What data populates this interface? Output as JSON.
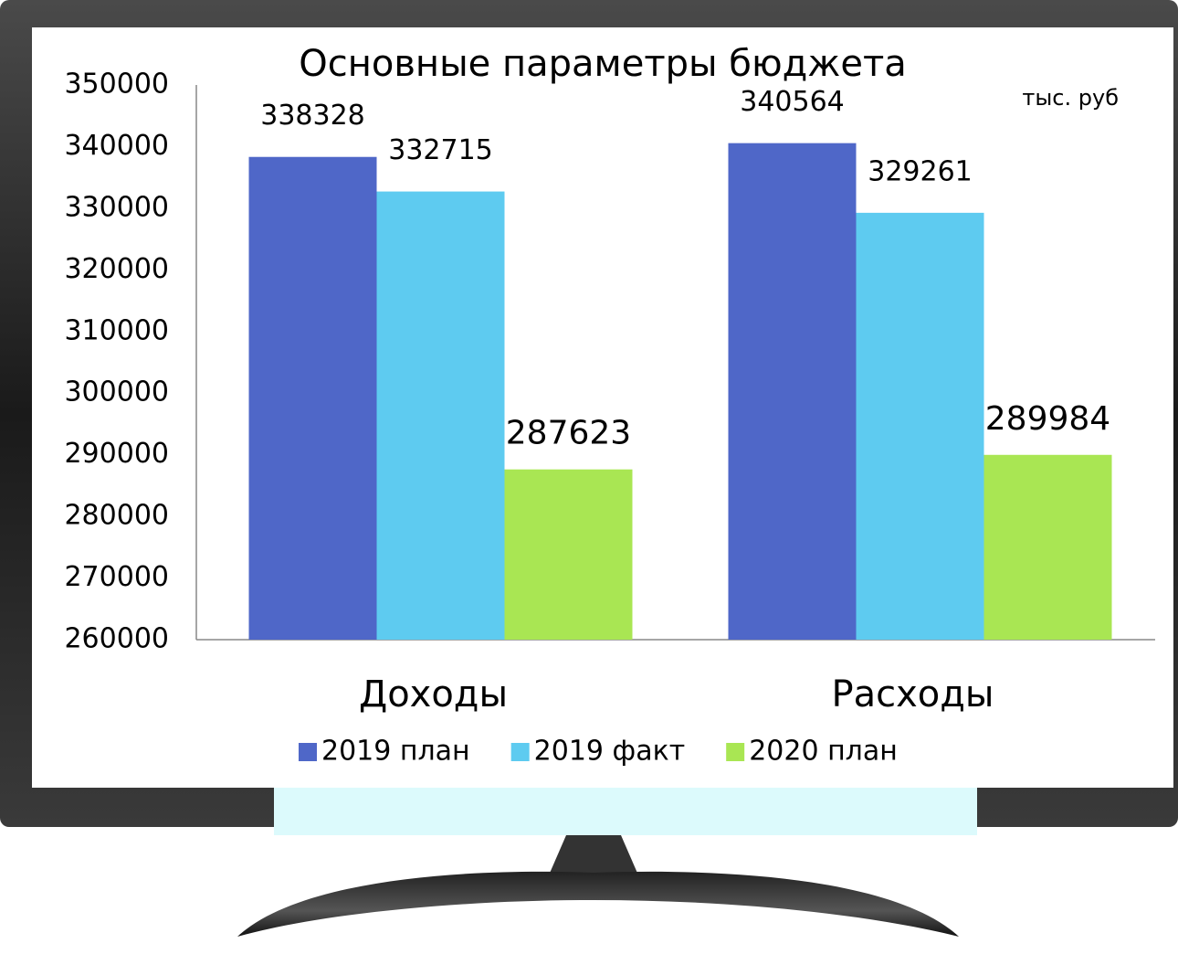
{
  "chart_data": {
    "type": "bar",
    "title": "Основные параметры бюджета",
    "unit": "тыс. руб",
    "categories": [
      "Доходы",
      "Расходы"
    ],
    "series": [
      {
        "name": "2019 план",
        "color": "#4f67c8",
        "values": [
          338328,
          340564
        ]
      },
      {
        "name": "2019 факт",
        "color": "#5ecbf0",
        "values": [
          332715,
          329261
        ]
      },
      {
        "name": "2020 план",
        "color": "#a9e653",
        "values": [
          287623,
          289984
        ]
      }
    ],
    "ylim": [
      260000,
      350000
    ],
    "yticks": [
      260000,
      270000,
      280000,
      290000,
      300000,
      310000,
      320000,
      330000,
      340000,
      350000
    ],
    "legend": "bottom"
  }
}
